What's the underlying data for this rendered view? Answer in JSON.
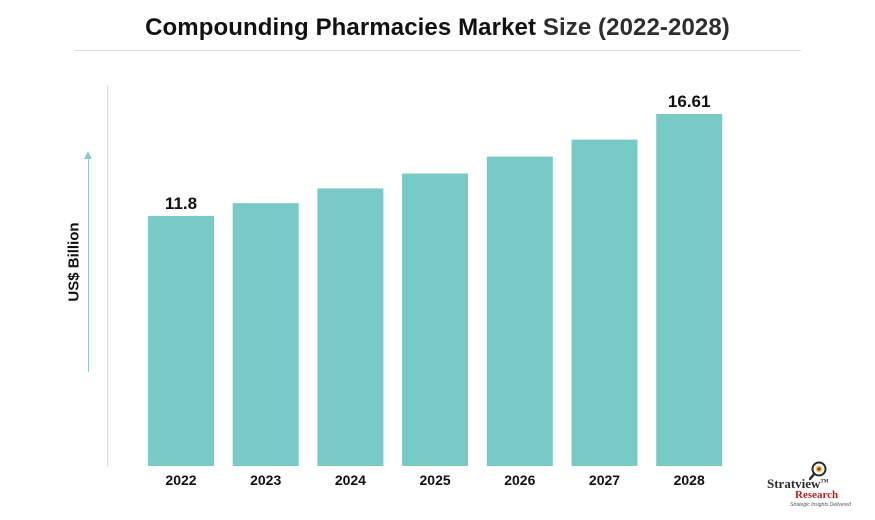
{
  "title": {
    "main": "Compounding Pharmacies Market",
    "sub": "Size (2022-2028)"
  },
  "chart_data": {
    "type": "bar",
    "categories": [
      "2022",
      "2023",
      "2024",
      "2025",
      "2026",
      "2027",
      "2028"
    ],
    "values": [
      11.8,
      12.4,
      13.1,
      13.8,
      14.6,
      15.4,
      16.61
    ],
    "data_labels": [
      "11.8",
      "",
      "",
      "",
      "",
      "",
      "16.61"
    ],
    "ylabel": "US$ Billion",
    "xlabel": "",
    "ylim": [
      0,
      20
    ],
    "grid": false,
    "bar_color": "#77cac6",
    "axis_color": "#cfd8d7",
    "label_color": "#111111"
  },
  "logo": {
    "name": "Stratview",
    "research": "Research",
    "tagline": "Strategic Insights Delivered",
    "tm": "TM",
    "icon": "magnifier-icon"
  }
}
